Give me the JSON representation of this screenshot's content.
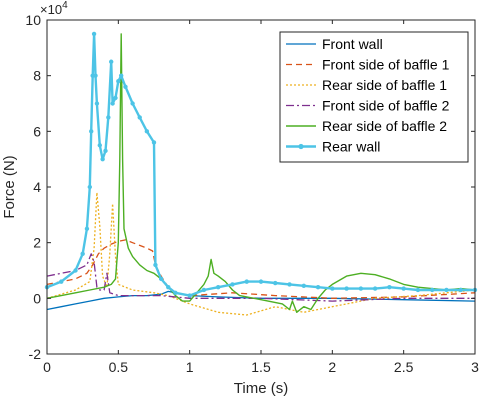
{
  "chart_data": {
    "type": "line",
    "xlabel": "Time (s)",
    "ylabel": "Force (N)",
    "y_exponent_label": "×10",
    "y_exponent_power": "4",
    "xlim": [
      0,
      3
    ],
    "ylim": [
      -2,
      10
    ],
    "x_ticks": [
      0,
      0.5,
      1,
      1.5,
      2,
      2.5,
      3
    ],
    "x_tick_labels": [
      "0",
      "0.5",
      "1",
      "1.5",
      "2",
      "2.5",
      "3"
    ],
    "y_ticks": [
      -2,
      0,
      2,
      4,
      6,
      8,
      10
    ],
    "y_tick_labels": [
      "-2",
      "0",
      "2",
      "4",
      "6",
      "8",
      "10"
    ],
    "grid": false,
    "legend_position": "top-right",
    "series": [
      {
        "name": "Front wall",
        "color": "#0072BD",
        "dash": "solid",
        "width": 1.3,
        "marker": false,
        "points": [
          [
            0,
            -0.4
          ],
          [
            0.1,
            -0.3
          ],
          [
            0.2,
            -0.2
          ],
          [
            0.3,
            -0.1
          ],
          [
            0.4,
            0.0
          ],
          [
            0.5,
            0.05
          ],
          [
            0.6,
            0.1
          ],
          [
            0.7,
            0.1
          ],
          [
            0.8,
            0.15
          ],
          [
            0.85,
            0.25
          ],
          [
            0.9,
            0.2
          ],
          [
            1.0,
            0.1
          ],
          [
            1.2,
            0.05
          ],
          [
            1.5,
            0.0
          ],
          [
            2.0,
            0.0
          ],
          [
            2.5,
            -0.05
          ],
          [
            3.0,
            -0.1
          ]
        ]
      },
      {
        "name": "Front side of baffle 1",
        "color": "#D95319",
        "dash": "6,4",
        "width": 1.3,
        "marker": false,
        "points": [
          [
            0,
            0.5
          ],
          [
            0.1,
            0.6
          ],
          [
            0.2,
            0.7
          ],
          [
            0.28,
            0.9
          ],
          [
            0.32,
            1.2
          ],
          [
            0.36,
            1.6
          ],
          [
            0.4,
            1.8
          ],
          [
            0.45,
            1.95
          ],
          [
            0.5,
            2.05
          ],
          [
            0.55,
            2.1
          ],
          [
            0.6,
            2.0
          ],
          [
            0.65,
            1.9
          ],
          [
            0.7,
            1.8
          ],
          [
            0.74,
            1.7
          ],
          [
            0.76,
            1.2
          ],
          [
            0.8,
            0.8
          ],
          [
            0.85,
            0.4
          ],
          [
            0.9,
            0.2
          ],
          [
            1.0,
            0.1
          ],
          [
            1.3,
            0.2
          ],
          [
            1.6,
            0.1
          ],
          [
            2.0,
            0.0
          ],
          [
            2.5,
            0.05
          ],
          [
            3.0,
            0.2
          ]
        ]
      },
      {
        "name": "Rear side of baffle 1",
        "color": "#EDB120",
        "dash": "2,2",
        "width": 1.3,
        "marker": false,
        "points": [
          [
            0,
            0.0
          ],
          [
            0.2,
            0.3
          ],
          [
            0.3,
            0.6
          ],
          [
            0.33,
            1.8
          ],
          [
            0.35,
            3.8
          ],
          [
            0.37,
            2.6
          ],
          [
            0.39,
            0.8
          ],
          [
            0.42,
            0.4
          ],
          [
            0.44,
            1.6
          ],
          [
            0.46,
            3.4
          ],
          [
            0.48,
            1.5
          ],
          [
            0.5,
            0.5
          ],
          [
            0.6,
            0.3
          ],
          [
            0.75,
            0.2
          ],
          [
            0.85,
            0.1
          ],
          [
            1.0,
            -0.2
          ],
          [
            1.2,
            -0.5
          ],
          [
            1.4,
            -0.6
          ],
          [
            1.6,
            -0.3
          ],
          [
            1.8,
            -0.5
          ],
          [
            2.0,
            -0.3
          ],
          [
            2.3,
            0.0
          ],
          [
            2.6,
            0.1
          ],
          [
            3.0,
            0.3
          ]
        ]
      },
      {
        "name": "Front side of baffle 2",
        "color": "#7E2F8E",
        "dash": "8,3,2,3",
        "width": 1.3,
        "marker": false,
        "points": [
          [
            0,
            0.8
          ],
          [
            0.1,
            0.9
          ],
          [
            0.2,
            1.0
          ],
          [
            0.28,
            1.2
          ],
          [
            0.31,
            1.6
          ],
          [
            0.33,
            1.3
          ],
          [
            0.35,
            0.4
          ],
          [
            0.37,
            0.3
          ],
          [
            0.4,
            0.3
          ],
          [
            0.42,
            0.9
          ],
          [
            0.44,
            0.2
          ],
          [
            0.5,
            0.1
          ],
          [
            0.6,
            0.1
          ],
          [
            0.8,
            0.1
          ],
          [
            1.0,
            0.0
          ],
          [
            1.5,
            0.0
          ],
          [
            2.0,
            -0.1
          ],
          [
            2.5,
            0.0
          ],
          [
            3.0,
            0.0
          ]
        ]
      },
      {
        "name": "Rear side of baffle 2",
        "color": "#4DAF23",
        "dash": "solid",
        "width": 1.4,
        "marker": false,
        "points": [
          [
            0,
            0.0
          ],
          [
            0.1,
            0.1
          ],
          [
            0.2,
            0.2
          ],
          [
            0.3,
            0.3
          ],
          [
            0.4,
            0.4
          ],
          [
            0.45,
            0.5
          ],
          [
            0.48,
            0.7
          ],
          [
            0.5,
            2.0
          ],
          [
            0.51,
            5.0
          ],
          [
            0.52,
            9.5
          ],
          [
            0.53,
            5.0
          ],
          [
            0.54,
            2.5
          ],
          [
            0.57,
            1.8
          ],
          [
            0.6,
            1.5
          ],
          [
            0.65,
            1.2
          ],
          [
            0.7,
            1.0
          ],
          [
            0.75,
            0.9
          ],
          [
            0.8,
            0.7
          ],
          [
            0.85,
            0.4
          ],
          [
            0.9,
            0.1
          ],
          [
            0.95,
            -0.1
          ],
          [
            1.0,
            -0.1
          ],
          [
            1.05,
            0.2
          ],
          [
            1.1,
            0.5
          ],
          [
            1.13,
            0.8
          ],
          [
            1.15,
            1.4
          ],
          [
            1.17,
            0.9
          ],
          [
            1.2,
            0.8
          ],
          [
            1.25,
            0.6
          ],
          [
            1.3,
            0.3
          ],
          [
            1.35,
            0.1
          ],
          [
            1.45,
            0.0
          ],
          [
            1.55,
            -0.1
          ],
          [
            1.65,
            -0.2
          ],
          [
            1.7,
            -0.4
          ],
          [
            1.72,
            -0.1
          ],
          [
            1.75,
            -0.5
          ],
          [
            1.8,
            -0.3
          ],
          [
            1.85,
            -0.4
          ],
          [
            1.9,
            0.0
          ],
          [
            1.95,
            0.3
          ],
          [
            2.0,
            0.5
          ],
          [
            2.1,
            0.8
          ],
          [
            2.2,
            0.9
          ],
          [
            2.3,
            0.85
          ],
          [
            2.4,
            0.7
          ],
          [
            2.5,
            0.5
          ],
          [
            2.6,
            0.4
          ],
          [
            2.7,
            0.35
          ],
          [
            2.8,
            0.3
          ],
          [
            2.9,
            0.35
          ],
          [
            3.0,
            0.3
          ]
        ]
      },
      {
        "name": "Rear wall",
        "color": "#4DC4E6",
        "dash": "solid",
        "width": 2.4,
        "marker": true,
        "points": [
          [
            0,
            0.4
          ],
          [
            0.1,
            0.6
          ],
          [
            0.2,
            1.0
          ],
          [
            0.25,
            1.6
          ],
          [
            0.28,
            2.5
          ],
          [
            0.3,
            4.0
          ],
          [
            0.31,
            6.0
          ],
          [
            0.32,
            8.0
          ],
          [
            0.33,
            9.5
          ],
          [
            0.34,
            8.0
          ],
          [
            0.35,
            7.0
          ],
          [
            0.37,
            5.5
          ],
          [
            0.39,
            5.0
          ],
          [
            0.41,
            5.3
          ],
          [
            0.43,
            6.5
          ],
          [
            0.45,
            8.5
          ],
          [
            0.46,
            7.0
          ],
          [
            0.48,
            7.2
          ],
          [
            0.5,
            7.8
          ],
          [
            0.52,
            8.0
          ],
          [
            0.55,
            7.6
          ],
          [
            0.6,
            7.0
          ],
          [
            0.65,
            6.5
          ],
          [
            0.7,
            6.0
          ],
          [
            0.75,
            5.6
          ],
          [
            0.76,
            1.2
          ],
          [
            0.8,
            0.7
          ],
          [
            0.85,
            0.4
          ],
          [
            0.9,
            0.2
          ],
          [
            1.0,
            0.1
          ],
          [
            1.1,
            0.3
          ],
          [
            1.2,
            0.4
          ],
          [
            1.3,
            0.5
          ],
          [
            1.4,
            0.6
          ],
          [
            1.5,
            0.6
          ],
          [
            1.6,
            0.55
          ],
          [
            1.7,
            0.5
          ],
          [
            1.8,
            0.45
          ],
          [
            1.9,
            0.4
          ],
          [
            2.0,
            0.35
          ],
          [
            2.1,
            0.35
          ],
          [
            2.2,
            0.35
          ],
          [
            2.3,
            0.35
          ],
          [
            2.4,
            0.4
          ],
          [
            2.5,
            0.35
          ],
          [
            2.6,
            0.3
          ],
          [
            2.7,
            0.3
          ],
          [
            2.8,
            0.3
          ],
          [
            2.9,
            0.3
          ],
          [
            3.0,
            0.3
          ]
        ]
      }
    ]
  }
}
